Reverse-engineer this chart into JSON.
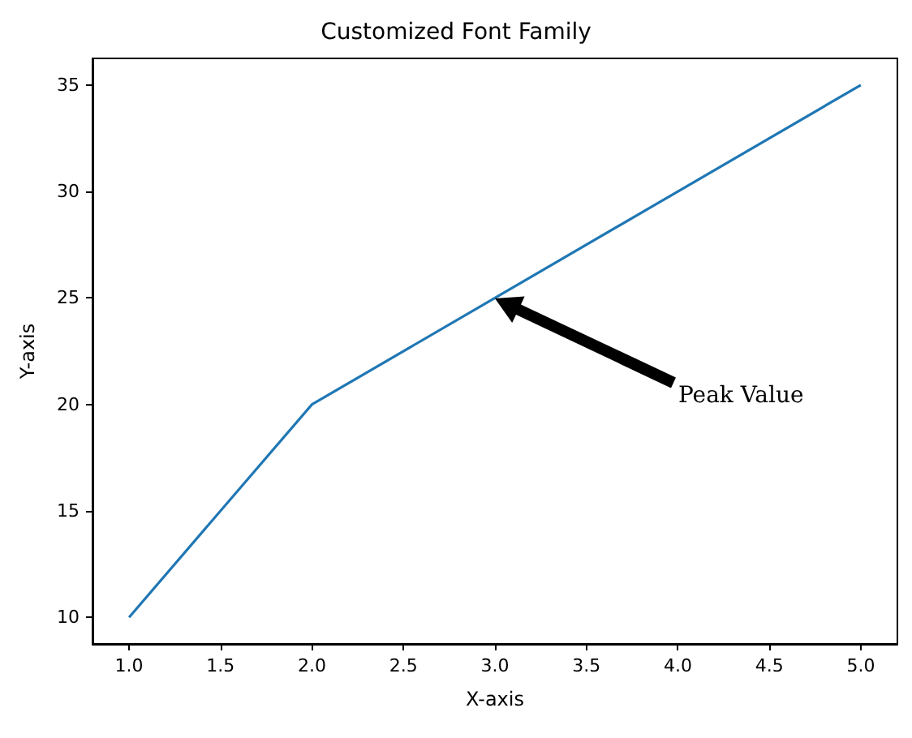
{
  "chart_data": {
    "type": "line",
    "title": "Customized Font Family",
    "xlabel": "X-axis",
    "ylabel": "Y-axis",
    "x": [
      1,
      2,
      3,
      4,
      5
    ],
    "series": [
      {
        "color": "#1f77b4",
        "values": [
          10,
          20,
          25,
          30,
          35
        ]
      }
    ],
    "xlim": [
      0.8,
      5.2
    ],
    "xticks": [
      {
        "value": 1,
        "label": "1.0"
      },
      {
        "value": 1.5,
        "label": "1.5"
      },
      {
        "value": 2,
        "label": "2.0"
      },
      {
        "value": 2.5,
        "label": "2.5"
      },
      {
        "value": 3,
        "label": "3.0"
      },
      {
        "value": 3.5,
        "label": "3.5"
      },
      {
        "value": 4,
        "label": "4.0"
      },
      {
        "value": 4.5,
        "label": "4.5"
      },
      {
        "value": 5,
        "label": "5.0"
      }
    ],
    "ylim": [
      8.75,
      36.25
    ],
    "yticks": [
      10,
      15,
      20,
      25,
      30,
      35
    ],
    "annotations": [
      "Peak Value"
    ],
    "grid": false,
    "marker": "none",
    "line_style": "solid"
  }
}
